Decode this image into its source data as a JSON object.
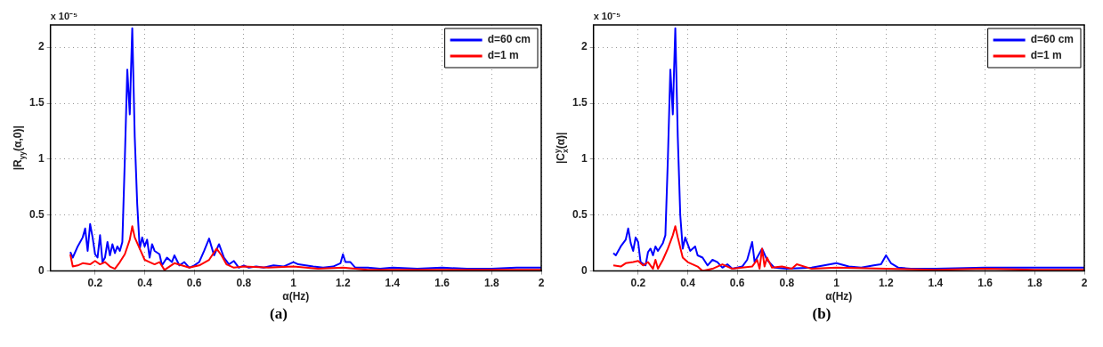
{
  "chart_data": [
    {
      "type": "line",
      "xlabel": "α(Hz)",
      "ylabel": "|R$_{yy}$(α,0)|",
      "annotations": [
        "x 10⁻⁵",
        "(a)"
      ],
      "xlim": [
        0.02,
        2
      ],
      "xticks": [
        0.2,
        0.4,
        0.6,
        0.8,
        1,
        1.2,
        1.4,
        1.6,
        1.8,
        2
      ],
      "ylim": [
        0,
        2.2
      ],
      "yticks": [
        0,
        0.5,
        1,
        1.5,
        2
      ],
      "grid": true,
      "legend": "top right",
      "marker": "none",
      "line_style": "solid",
      "series": [
        {
          "name": "d=60 cm",
          "color": "#0000ff",
          "x": [
            0.1,
            0.11,
            0.13,
            0.15,
            0.16,
            0.17,
            0.18,
            0.19,
            0.2,
            0.21,
            0.22,
            0.23,
            0.24,
            0.25,
            0.26,
            0.27,
            0.28,
            0.29,
            0.3,
            0.31,
            0.32,
            0.33,
            0.34,
            0.345,
            0.35,
            0.36,
            0.37,
            0.38,
            0.39,
            0.4,
            0.41,
            0.42,
            0.43,
            0.44,
            0.46,
            0.47,
            0.49,
            0.51,
            0.52,
            0.54,
            0.56,
            0.58,
            0.6,
            0.62,
            0.64,
            0.66,
            0.68,
            0.7,
            0.72,
            0.74,
            0.76,
            0.78,
            0.8,
            0.82,
            0.85,
            0.88,
            0.92,
            0.96,
            1.0,
            1.02,
            1.05,
            1.08,
            1.12,
            1.16,
            1.19,
            1.2,
            1.21,
            1.23,
            1.25,
            1.3,
            1.35,
            1.4,
            1.5,
            1.6,
            1.7,
            1.8,
            1.9,
            2.0
          ],
          "values": [
            0.17,
            0.12,
            0.22,
            0.3,
            0.38,
            0.18,
            0.42,
            0.3,
            0.15,
            0.12,
            0.32,
            0.08,
            0.12,
            0.26,
            0.14,
            0.24,
            0.16,
            0.22,
            0.18,
            0.26,
            1.0,
            1.8,
            1.4,
            1.8,
            2.17,
            1.2,
            0.6,
            0.2,
            0.3,
            0.22,
            0.28,
            0.12,
            0.24,
            0.18,
            0.15,
            0.05,
            0.12,
            0.08,
            0.14,
            0.05,
            0.08,
            0.03,
            0.05,
            0.08,
            0.18,
            0.29,
            0.14,
            0.24,
            0.12,
            0.06,
            0.09,
            0.03,
            0.05,
            0.03,
            0.04,
            0.03,
            0.05,
            0.04,
            0.08,
            0.06,
            0.05,
            0.04,
            0.03,
            0.04,
            0.07,
            0.15,
            0.08,
            0.08,
            0.03,
            0.03,
            0.02,
            0.03,
            0.02,
            0.03,
            0.02,
            0.02,
            0.03,
            0.03
          ]
        },
        {
          "name": "d=1 m",
          "color": "#ff0000",
          "x": [
            0.1,
            0.11,
            0.13,
            0.15,
            0.18,
            0.2,
            0.22,
            0.24,
            0.26,
            0.28,
            0.3,
            0.32,
            0.34,
            0.35,
            0.36,
            0.38,
            0.4,
            0.42,
            0.44,
            0.46,
            0.48,
            0.5,
            0.52,
            0.55,
            0.58,
            0.62,
            0.66,
            0.69,
            0.71,
            0.73,
            0.76,
            0.8,
            0.9,
            1.0,
            1.1,
            1.2,
            1.3,
            1.5,
            1.7,
            2.0
          ],
          "values": [
            0.15,
            0.04,
            0.05,
            0.07,
            0.06,
            0.09,
            0.06,
            0.08,
            0.04,
            0.02,
            0.08,
            0.15,
            0.28,
            0.4,
            0.3,
            0.2,
            0.1,
            0.08,
            0.06,
            0.08,
            0.01,
            0.04,
            0.07,
            0.05,
            0.03,
            0.05,
            0.1,
            0.2,
            0.14,
            0.06,
            0.03,
            0.04,
            0.03,
            0.04,
            0.02,
            0.03,
            0.01,
            0.01,
            0.01,
            0.01
          ]
        }
      ]
    },
    {
      "type": "line",
      "xlabel": "α(Hz)",
      "ylabel": "|C$^{y}$$_{x}$(α)|",
      "annotations": [
        "x 10⁻⁵",
        "(b)"
      ],
      "xlim": [
        0.02,
        2
      ],
      "xticks": [
        0.2,
        0.4,
        0.6,
        0.8,
        1,
        1.2,
        1.4,
        1.6,
        1.8,
        2
      ],
      "ylim": [
        0,
        2.2
      ],
      "yticks": [
        0,
        0.5,
        1,
        1.5,
        2
      ],
      "grid": true,
      "legend": "top right",
      "marker": "none",
      "line_style": "solid",
      "series": [
        {
          "name": "d=60 cm",
          "color": "#0000ff",
          "x": [
            0.1,
            0.11,
            0.13,
            0.15,
            0.16,
            0.17,
            0.18,
            0.19,
            0.2,
            0.21,
            0.23,
            0.24,
            0.25,
            0.26,
            0.27,
            0.28,
            0.3,
            0.31,
            0.32,
            0.33,
            0.34,
            0.345,
            0.35,
            0.36,
            0.37,
            0.38,
            0.39,
            0.4,
            0.41,
            0.43,
            0.44,
            0.46,
            0.48,
            0.5,
            0.52,
            0.54,
            0.56,
            0.58,
            0.62,
            0.64,
            0.66,
            0.67,
            0.7,
            0.72,
            0.75,
            0.8,
            0.9,
            1.0,
            1.05,
            1.1,
            1.15,
            1.18,
            1.2,
            1.22,
            1.25,
            1.3,
            1.4,
            1.6,
            1.8,
            2.0
          ],
          "values": [
            0.16,
            0.14,
            0.22,
            0.28,
            0.38,
            0.25,
            0.18,
            0.3,
            0.26,
            0.08,
            0.05,
            0.17,
            0.2,
            0.14,
            0.22,
            0.18,
            0.25,
            0.32,
            1.0,
            1.8,
            1.4,
            1.8,
            2.17,
            1.2,
            0.5,
            0.2,
            0.3,
            0.24,
            0.18,
            0.22,
            0.14,
            0.12,
            0.05,
            0.1,
            0.08,
            0.03,
            0.06,
            0.02,
            0.04,
            0.1,
            0.26,
            0.08,
            0.2,
            0.1,
            0.03,
            0.02,
            0.03,
            0.07,
            0.04,
            0.03,
            0.05,
            0.06,
            0.14,
            0.07,
            0.03,
            0.02,
            0.02,
            0.03,
            0.03,
            0.03
          ]
        },
        {
          "name": "d=1 m",
          "color": "#ff0000",
          "x": [
            0.1,
            0.13,
            0.15,
            0.18,
            0.2,
            0.22,
            0.24,
            0.26,
            0.27,
            0.28,
            0.3,
            0.32,
            0.34,
            0.35,
            0.36,
            0.38,
            0.4,
            0.42,
            0.44,
            0.46,
            0.5,
            0.54,
            0.58,
            0.62,
            0.66,
            0.68,
            0.69,
            0.7,
            0.71,
            0.72,
            0.74,
            0.78,
            0.82,
            0.84,
            0.9,
            1.0,
            1.2,
            1.4,
            1.6,
            1.8,
            2.0
          ],
          "values": [
            0.05,
            0.04,
            0.07,
            0.08,
            0.09,
            0.05,
            0.08,
            0.02,
            0.1,
            0.02,
            0.1,
            0.2,
            0.32,
            0.4,
            0.3,
            0.12,
            0.08,
            0.06,
            0.04,
            0.0,
            0.02,
            0.06,
            0.02,
            0.03,
            0.04,
            0.1,
            0.02,
            0.2,
            0.04,
            0.12,
            0.03,
            0.04,
            0.02,
            0.06,
            0.02,
            0.03,
            0.02,
            0.01,
            0.02,
            0.01,
            0.01
          ]
        }
      ]
    }
  ]
}
